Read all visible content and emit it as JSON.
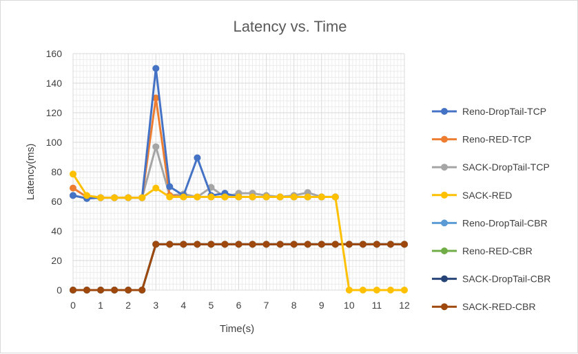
{
  "chart_data": {
    "type": "line",
    "title": "Latency vs. Time",
    "xlabel": "Time(s)",
    "ylabel": "Latency(ms)",
    "xlim": [
      0,
      12
    ],
    "ylim": [
      0,
      160
    ],
    "x_ticks": [
      0,
      1,
      2,
      3,
      4,
      5,
      6,
      7,
      8,
      9,
      10,
      11,
      12
    ],
    "y_ticks": [
      0,
      20,
      40,
      60,
      80,
      100,
      120,
      140,
      160
    ],
    "grid": true,
    "legend_position": "right",
    "x": [
      0,
      0.5,
      1,
      1.5,
      2,
      2.5,
      3,
      3.5,
      4,
      4.5,
      5,
      5.5,
      6,
      6.5,
      7,
      7.5,
      8,
      8.5,
      9,
      9.5,
      10,
      10.5,
      11,
      11.5,
      12
    ],
    "series": [
      {
        "name": "Reno-DropTail-TCP",
        "color": "#4472c4",
        "values": [
          64,
          62,
          62.5,
          62.5,
          62.5,
          62.5,
          150,
          70,
          64,
          89.5,
          64,
          65.5,
          63,
          63,
          63,
          63,
          63,
          63,
          63,
          63,
          null,
          null,
          null,
          null,
          null
        ]
      },
      {
        "name": "Reno-RED-TCP",
        "color": "#ed7d31",
        "values": [
          69,
          63,
          62.5,
          62.5,
          62.5,
          62.5,
          130,
          64,
          63,
          63,
          63,
          63,
          63,
          63,
          63,
          63,
          63,
          63,
          63,
          63,
          null,
          null,
          null,
          null,
          null
        ]
      },
      {
        "name": "SACK-DropTail-TCP",
        "color": "#a5a5a5",
        "values": [
          64,
          62,
          62.5,
          62.5,
          62.5,
          62.5,
          97,
          64,
          65,
          63,
          69.5,
          63,
          65.5,
          65.5,
          64,
          63,
          64,
          66,
          63,
          63,
          null,
          null,
          null,
          null,
          null
        ]
      },
      {
        "name": "SACK-RED",
        "color": "#ffc000",
        "values": [
          78.5,
          64,
          62.5,
          62.5,
          62.5,
          62.5,
          69,
          63,
          63,
          63,
          63,
          63,
          63,
          63,
          63,
          63,
          63,
          63,
          63,
          63,
          0,
          0,
          0,
          0,
          0
        ]
      },
      {
        "name": "Reno-DropTail-CBR",
        "color": "#5b9bd5",
        "values": [
          0,
          0,
          0,
          0,
          0,
          0,
          31,
          31,
          31,
          31,
          31,
          31,
          31,
          31,
          31,
          31,
          31,
          31,
          31,
          31,
          31,
          31,
          31,
          31,
          31
        ]
      },
      {
        "name": "Reno-RED-CBR",
        "color": "#70ad47",
        "values": [
          0,
          0,
          0,
          0,
          0,
          0,
          31,
          31,
          31,
          31,
          31,
          31,
          31,
          31,
          31,
          31,
          31,
          31,
          31,
          31,
          31,
          31,
          31,
          31,
          31
        ]
      },
      {
        "name": "SACK-DropTail-CBR",
        "color": "#264478",
        "values": [
          0,
          0,
          0,
          0,
          0,
          0,
          31,
          31,
          31,
          31,
          31,
          31,
          31,
          31,
          31,
          31,
          31,
          31,
          31,
          31,
          31,
          31,
          31,
          31,
          31
        ]
      },
      {
        "name": "SACK-RED-CBR",
        "color": "#9e480e",
        "values": [
          0,
          0,
          0,
          0,
          0,
          0,
          31,
          31,
          31,
          31,
          31,
          31,
          31,
          31,
          31,
          31,
          31,
          31,
          31,
          31,
          31,
          31,
          31,
          31,
          31
        ]
      }
    ]
  }
}
